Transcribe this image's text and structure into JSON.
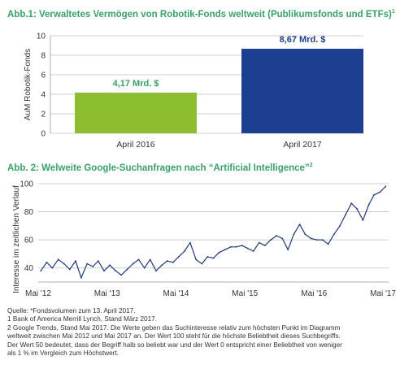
{
  "charts": {
    "title1": "Abb.1: Verwaltetes Vermögen von Robotik-Fonds weltweit (Publikumsfonds und ETFs)",
    "title1_sup": "1",
    "title2": "Abb. 2: Welweite Google-Suchanfragen nach “Artificial Intelligence”",
    "title2_sup": "2"
  },
  "colors": {
    "title": "#3aa06a",
    "bar_green": "#8cbe2f",
    "bar_blue": "#1d3f91",
    "line": "#1f3a7a",
    "label_green": "#3aa06a",
    "label_blue": "#1d3f91"
  },
  "notes": [
    "Quelle: *Fondsvolumen zum 13. April 2017.",
    "1  Bank of America Merrill Lynch, Stand März 2017.",
    "2  Google Trends, Stand Mai 2017. Die Werte geben das Suchinteresse relativ zum höchsten Punkt im Diagramm",
    "weltweit zwischen Mai 2012 und Mai 2017 an.  Der Wert 100 steht für die höchste Beliebtheit dieses Suchbegriffs.",
    "Der Wert 50 bedeutet, dass der Begriff halb so beliebt war und der Wert 0 entspricht einer Beliebtheit von weniger",
    "als 1 % im Vergleich zum Höchstwert."
  ],
  "chart_data": [
    {
      "type": "bar",
      "title": "Abb.1: Verwaltetes Vermögen von Robotik-Fonds weltweit (Publikumsfonds und ETFs)",
      "categories": [
        "April 2016",
        "April 2017"
      ],
      "values": [
        4.17,
        8.67
      ],
      "data_labels": [
        "4,17 Mrd. $",
        "8,67 Mrd. $"
      ],
      "ylabel": "AuM Robotik-Fonds",
      "ylim": [
        0,
        10
      ],
      "yticks": [
        0,
        2,
        4,
        6,
        8,
        10
      ],
      "yticklabels": [
        "0",
        "2",
        "4",
        "6",
        "8",
        "10"
      ],
      "grid": true
    },
    {
      "type": "line",
      "title": "Abb. 2: Welweite Google-Suchanfragen nach “Artificial Intelligence”",
      "ylabel": "Interesse im zeitlichen Verlauf",
      "ylim": [
        30,
        100
      ],
      "yticks": [
        40,
        60,
        80,
        100
      ],
      "yticklabels": [
        "40",
        "60",
        "80",
        "100"
      ],
      "xlim": [
        "2012-05-01",
        "2017-05-31"
      ],
      "xticks": [
        "2012-05",
        "2013-05",
        "2014-05",
        "2015-05",
        "2016-05",
        "2017-05"
      ],
      "xticklabels": [
        "Mai '12",
        "Mai '13",
        "Mai '14",
        "Mai '15",
        "Mai '16",
        "Mai '17"
      ],
      "grid": true,
      "series": [
        {
          "x": [
            "2012-05",
            "2012-06",
            "2012-07",
            "2012-08",
            "2012-09",
            "2012-10",
            "2012-11",
            "2012-12",
            "2013-01",
            "2013-02",
            "2013-03",
            "2013-04",
            "2013-05",
            "2013-06",
            "2013-07",
            "2013-08",
            "2013-09",
            "2013-10",
            "2013-11",
            "2013-12",
            "2014-01",
            "2014-02",
            "2014-03",
            "2014-04",
            "2014-05",
            "2014-06",
            "2014-07",
            "2014-08",
            "2014-09",
            "2014-10",
            "2014-11",
            "2014-12",
            "2015-01",
            "2015-02",
            "2015-03",
            "2015-04",
            "2015-05",
            "2015-06",
            "2015-07",
            "2015-08",
            "2015-09",
            "2015-10",
            "2015-11",
            "2015-12",
            "2016-01",
            "2016-02",
            "2016-03",
            "2016-04",
            "2016-05",
            "2016-06",
            "2016-07",
            "2016-08",
            "2016-09",
            "2016-10",
            "2016-11",
            "2016-12",
            "2017-01",
            "2017-02",
            "2017-03",
            "2017-04",
            "2017-05"
          ],
          "values": [
            38,
            44,
            40,
            46,
            43,
            39,
            45,
            33,
            43,
            41,
            45,
            38,
            42,
            38,
            35,
            39,
            43,
            46,
            40,
            46,
            38,
            42,
            45,
            44,
            48,
            52,
            58,
            46,
            43,
            48,
            47,
            51,
            53,
            55,
            55,
            56,
            54,
            52,
            58,
            56,
            60,
            63,
            61,
            53,
            64,
            71,
            64,
            61,
            60,
            60,
            57,
            64,
            70,
            78,
            86,
            82,
            74,
            85,
            92,
            94,
            98
          ]
        }
      ]
    }
  ]
}
